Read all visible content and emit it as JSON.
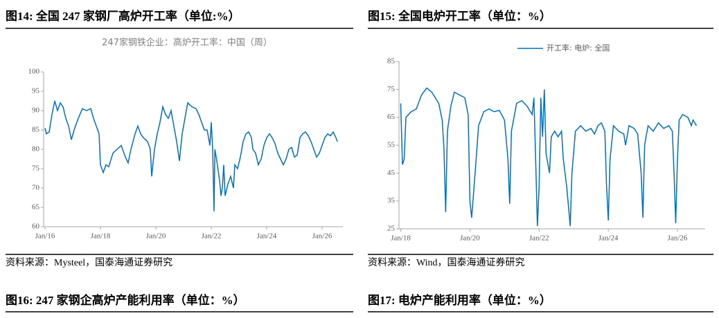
{
  "chart_data": [
    {
      "type": "line",
      "figure_title": "图14:  全国 247 家钢厂高炉开工率（单位:%）",
      "subtitle": "247家钢铁企业：高炉开工率：中国（周）",
      "source": "资料来源：Mysteel，国泰海通证券研究",
      "color": "#0070c0",
      "x": [
        2016.0,
        2016.05,
        2016.15,
        2016.25,
        2016.35,
        2016.45,
        2016.55,
        2016.65,
        2016.75,
        2016.85,
        2016.95,
        2017.05,
        2017.2,
        2017.35,
        2017.5,
        2017.65,
        2017.75,
        2017.85,
        2017.95,
        2018.0,
        2018.1,
        2018.2,
        2018.3,
        2018.45,
        2018.6,
        2018.75,
        2018.9,
        2019.0,
        2019.1,
        2019.25,
        2019.35,
        2019.45,
        2019.55,
        2019.7,
        2019.8,
        2019.85,
        2019.95,
        2020.05,
        2020.15,
        2020.25,
        2020.35,
        2020.45,
        2020.55,
        2020.65,
        2020.75,
        2020.85,
        2020.95,
        2021.05,
        2021.15,
        2021.3,
        2021.45,
        2021.55,
        2021.65,
        2021.75,
        2021.85,
        2021.95,
        2022.0,
        2022.05,
        2022.1,
        2022.13,
        2022.2,
        2022.3,
        2022.35,
        2022.4,
        2022.45,
        2022.5,
        2022.6,
        2022.7,
        2022.8,
        2022.85,
        2022.95,
        2023.05,
        2023.15,
        2023.25,
        2023.35,
        2023.45,
        2023.5,
        2023.6,
        2023.7,
        2023.8,
        2023.9,
        2024.0,
        2024.1,
        2024.2,
        2024.3,
        2024.4,
        2024.5,
        2024.6,
        2024.7,
        2024.8,
        2024.9,
        2025.0,
        2025.1,
        2025.2,
        2025.3,
        2025.4,
        2025.5,
        2025.6,
        2025.7,
        2025.8,
        2025.9,
        2026.0,
        2026.1,
        2026.2,
        2026.3,
        2026.4,
        2026.5,
        2026.55
      ],
      "values": [
        85.5,
        84,
        84.5,
        89,
        92.5,
        90,
        92,
        91,
        88,
        86,
        82.5,
        85,
        88,
        90.5,
        90,
        90.5,
        88,
        86,
        84,
        76,
        74,
        76,
        75.5,
        79,
        80,
        81,
        78,
        76.5,
        80,
        84,
        86,
        84,
        83,
        82,
        80,
        73,
        80,
        84,
        87,
        91,
        89,
        88,
        90,
        86,
        82,
        77,
        84,
        88,
        92,
        91,
        90.5,
        89,
        87,
        85,
        85,
        81,
        87,
        80,
        64,
        80,
        77,
        72,
        68,
        70,
        76,
        68,
        71,
        73,
        70,
        76,
        75,
        78,
        82,
        84,
        84.5,
        83,
        80,
        79,
        76,
        77.5,
        81,
        83,
        84,
        83,
        81.5,
        79,
        77.5,
        76,
        77.5,
        80,
        80.5,
        78,
        78.5,
        83,
        84,
        84.5,
        83.5,
        82,
        80,
        78,
        79,
        81,
        83,
        84,
        83.5,
        84.5,
        83,
        82
      ],
      "xlim": [
        2015.95,
        2026.75
      ],
      "xticks": [
        {
          "value": 2016,
          "label": "Jan/16"
        },
        {
          "value": 2018,
          "label": "Jan/18"
        },
        {
          "value": 2020,
          "label": "Jan/20"
        },
        {
          "value": 2022,
          "label": "Jan/22"
        },
        {
          "value": 2024,
          "label": "Jan/24"
        },
        {
          "value": 2026,
          "label": "Jan/26"
        }
      ],
      "ylim": [
        60,
        100
      ],
      "yticks": [
        60,
        65,
        70,
        75,
        80,
        85,
        90,
        95,
        100
      ],
      "grid": false
    },
    {
      "type": "line",
      "figure_title": "图15:  全国电炉开工率（单位：%）",
      "source": "资料来源：Wind，国泰海通证券研究",
      "series": [
        {
          "name": "开工率: 电炉: 全国",
          "color": "#0070c0",
          "x": [
            2018.0,
            2018.05,
            2018.1,
            2018.15,
            2018.3,
            2018.45,
            2018.6,
            2018.75,
            2018.9,
            2019.0,
            2019.1,
            2019.2,
            2019.25,
            2019.3,
            2019.35,
            2019.45,
            2019.55,
            2019.7,
            2019.85,
            2019.95,
            2020.0,
            2020.05,
            2020.15,
            2020.25,
            2020.4,
            2020.55,
            2020.7,
            2020.85,
            2021.0,
            2021.1,
            2021.15,
            2021.2,
            2021.35,
            2021.5,
            2021.65,
            2021.8,
            2021.85,
            2021.9,
            2021.95,
            2022.0,
            2022.05,
            2022.1,
            2022.15,
            2022.2,
            2022.3,
            2022.35,
            2022.45,
            2022.55,
            2022.65,
            2022.7,
            2022.8,
            2022.9,
            2022.95,
            2023.05,
            2023.2,
            2023.35,
            2023.5,
            2023.6,
            2023.7,
            2023.8,
            2023.9,
            2023.95,
            2024.0,
            2024.05,
            2024.15,
            2024.3,
            2024.45,
            2024.5,
            2024.6,
            2024.75,
            2024.85,
            2024.95,
            2025.0,
            2025.05,
            2025.15,
            2025.3,
            2025.45,
            2025.6,
            2025.75,
            2025.85,
            2025.9,
            2025.95,
            2026.0,
            2026.05,
            2026.15,
            2026.3,
            2026.4,
            2026.45,
            2026.55
          ],
          "values": [
            70,
            48,
            50,
            65,
            67,
            68,
            73,
            75.5,
            74,
            72,
            70,
            64,
            54,
            31,
            60,
            69,
            74,
            73,
            72,
            66,
            35,
            29,
            45,
            62,
            67,
            68,
            67,
            67.5,
            64,
            50,
            34,
            60,
            70,
            71,
            69,
            66,
            72,
            50,
            26,
            40,
            72,
            58,
            75,
            52,
            45,
            58,
            60,
            58,
            60,
            50,
            40,
            26,
            45,
            60,
            62,
            60,
            61,
            59,
            62,
            63,
            60,
            40,
            28,
            50,
            62,
            60,
            59,
            55,
            62,
            61,
            59,
            45,
            29,
            55,
            62,
            60,
            63,
            61,
            62,
            60,
            45,
            27,
            50,
            64,
            66,
            65,
            62,
            64,
            62
          ]
        }
      ],
      "xlim": [
        2017.95,
        2026.8
      ],
      "xticks": [
        {
          "value": 2018,
          "label": "Jan/18"
        },
        {
          "value": 2020,
          "label": "Jan/20"
        },
        {
          "value": 2022,
          "label": "Jan/22"
        },
        {
          "value": 2024,
          "label": "Jan/24"
        },
        {
          "value": 2026,
          "label": "Jan/26"
        }
      ],
      "ylim": [
        25,
        85
      ],
      "yticks": [
        25,
        35,
        45,
        55,
        65,
        75,
        85
      ],
      "grid": false,
      "legend": "top"
    }
  ],
  "headings": [
    "图16:  247 家钢企高炉产能利用率（单位：%）",
    "图17:  电炉产能利用率（单位：%）"
  ]
}
